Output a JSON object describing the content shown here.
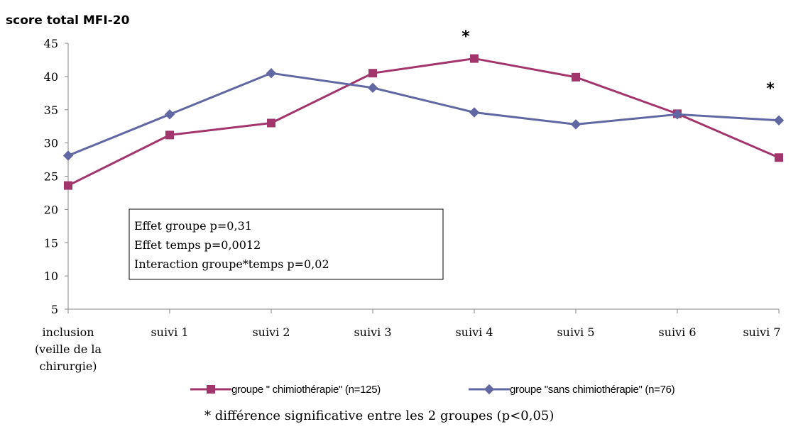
{
  "chart_data": {
    "type": "line",
    "title": "score total  MFI-20",
    "xlabel": "",
    "ylabel": "",
    "ylim": [
      5,
      45
    ],
    "yticks": [
      "5",
      "10",
      "15",
      "20",
      "25",
      "30",
      "35",
      "40",
      "45"
    ],
    "grid": false,
    "categories": [
      [
        "inclusion",
        "(veille de la",
        "chirurgie)"
      ],
      [
        "suivi 1"
      ],
      [
        "suivi 2"
      ],
      [
        "suivi 3"
      ],
      [
        "suivi 4"
      ],
      [
        "suivi 5"
      ],
      [
        "suivi 6"
      ],
      [
        "suivi 7"
      ]
    ],
    "series": [
      {
        "name": "groupe \" chimiothérapie\" (n=125)",
        "color": "#A3356D",
        "marker": "square",
        "values": [
          23.6,
          31.2,
          33.0,
          40.5,
          42.7,
          39.9,
          34.4,
          27.8
        ]
      },
      {
        "name": "groupe \"sans chimiothérapie\" (n=76)",
        "color": "#6167A3",
        "marker": "diamond",
        "values": [
          28.1,
          34.3,
          40.5,
          38.3,
          34.6,
          32.8,
          34.3,
          33.4
        ]
      }
    ],
    "significance_markers": [
      {
        "category_index": 4,
        "text": "*"
      },
      {
        "category_index": 7,
        "text": "*"
      }
    ],
    "stats_box": [
      "Effet groupe p=0,31",
      "Effet temps p=0,0012",
      "Interaction groupe*temps p=0,02"
    ],
    "legend_position": "bottom",
    "footnote": "*  différence significative entre les 2 groupes (p<0,05)"
  }
}
